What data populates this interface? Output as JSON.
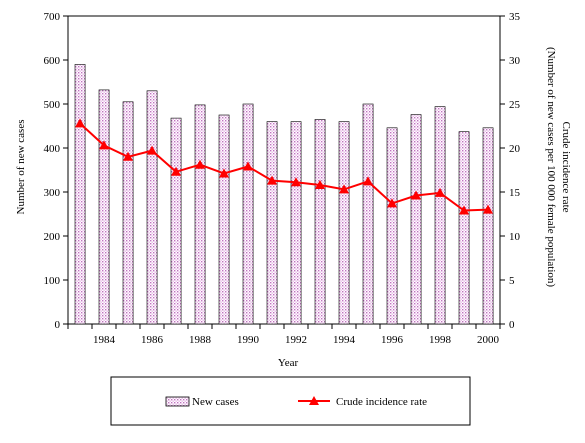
{
  "chart_data": {
    "type": "bar",
    "xlabel": "Year",
    "ylabel": "Number of new cases",
    "y2label_line1": "Crude incidence rate",
    "y2label_line2": "(Number of new cases per 100 000 female population)",
    "ylim": [
      0,
      700
    ],
    "y2lim": [
      0,
      35
    ],
    "yticks": [
      0,
      100,
      200,
      300,
      400,
      500,
      600,
      700
    ],
    "y2ticks": [
      0,
      5,
      10,
      15,
      20,
      25,
      30,
      35
    ],
    "x_tick_labels": [
      "1984",
      "1986",
      "1988",
      "1990",
      "1992",
      "1994",
      "1996",
      "1998",
      "2000"
    ],
    "categories": [
      1983,
      1984,
      1985,
      1986,
      1987,
      1988,
      1989,
      1990,
      1991,
      1992,
      1993,
      1994,
      1995,
      1996,
      1997,
      1998,
      1999,
      2000
    ],
    "grid": false,
    "legend_position": "bottom",
    "series": [
      {
        "name": "New cases",
        "type": "bar",
        "axis": "left",
        "values": [
          590,
          532,
          505,
          530,
          468,
          498,
          475,
          500,
          460,
          460,
          465,
          460,
          500,
          446,
          476,
          494,
          437,
          446
        ]
      },
      {
        "name": "Crude incidence rate",
        "type": "line",
        "axis": "right",
        "color": "#ff0000",
        "values": [
          22.8,
          20.3,
          19.0,
          19.7,
          17.3,
          18.1,
          17.1,
          17.9,
          16.3,
          16.1,
          15.8,
          15.3,
          16.2,
          13.7,
          14.6,
          14.9,
          12.9,
          13.0
        ]
      }
    ]
  }
}
